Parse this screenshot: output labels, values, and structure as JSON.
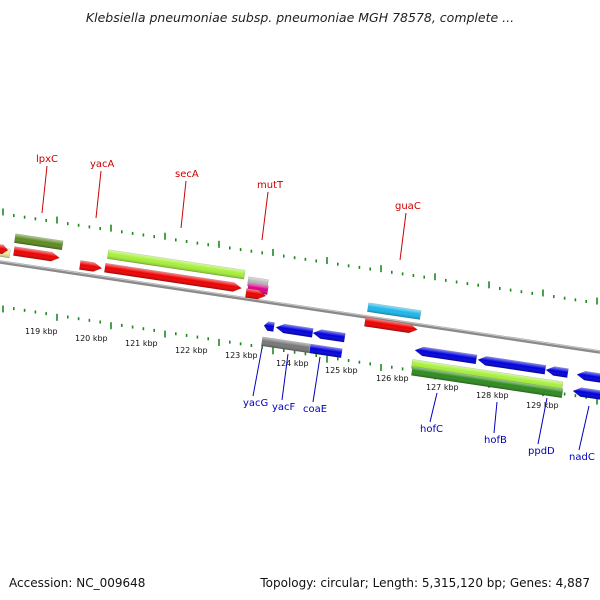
{
  "title": "Klebsiella pneumoniae subsp. pneumoniae MGH 78578, complete ...",
  "footer": {
    "accession": "Accession: NC_009648",
    "topology": "Topology: circular; Length: 5,315,120 bp; Genes: 4,887"
  },
  "colors": {
    "backbone": "#8a8a8a",
    "ruler": "#1f8a1f",
    "label_top": "#cc0000",
    "label_bottom": "#0000bb",
    "red": "#ee0000",
    "blue": "#0000dd",
    "lime": "#a6f03a",
    "olive": "#5d8a1f",
    "cyan": "#1bb7ea",
    "gray": "#777777",
    "magenta": "#e0008a",
    "green": "#2e8b1e",
    "pale": "#eeeaa0"
  },
  "kbp_ticks": [
    "119 kbp",
    "120 kbp",
    "121 kbp",
    "122 kbp",
    "123 kbp",
    "124 kbp",
    "125 kbp",
    "126 kbp",
    "127 kbp",
    "128 kbp",
    "129 kbp"
  ],
  "top_labels": [
    "lpxC",
    "yacA",
    "secA",
    "mutT",
    "guaC"
  ],
  "bottom_labels": [
    "yacG",
    "yacF",
    "coaE",
    "hofC",
    "hofB",
    "ppdD",
    "nadC"
  ]
}
